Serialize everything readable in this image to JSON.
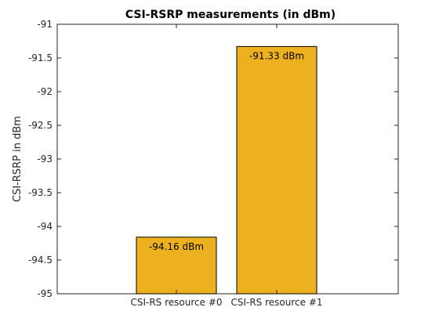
{
  "chart_data": {
    "type": "bar",
    "title": "CSI-RSRP measurements (in dBm)",
    "xlabel": "",
    "ylabel": "CSI-RSRP in dBm",
    "categories": [
      "CSI-RS resource #0",
      "CSI-RS resource #1"
    ],
    "values": [
      -94.16,
      -91.33
    ],
    "data_labels": [
      "-94.16 dBm",
      "-91.33 dBm"
    ],
    "ylim": [
      -95,
      -91
    ],
    "yticks": [
      -91,
      -91.5,
      -92,
      -92.5,
      -93,
      -93.5,
      -94,
      -94.5,
      -95
    ],
    "ytick_labels": [
      "-91",
      "-91.5",
      "-92",
      "-92.5",
      "-93",
      "-93.5",
      "-94",
      "-94.5",
      "-95"
    ],
    "bar_color": "#EDB120",
    "grid": false,
    "legend": "none"
  }
}
